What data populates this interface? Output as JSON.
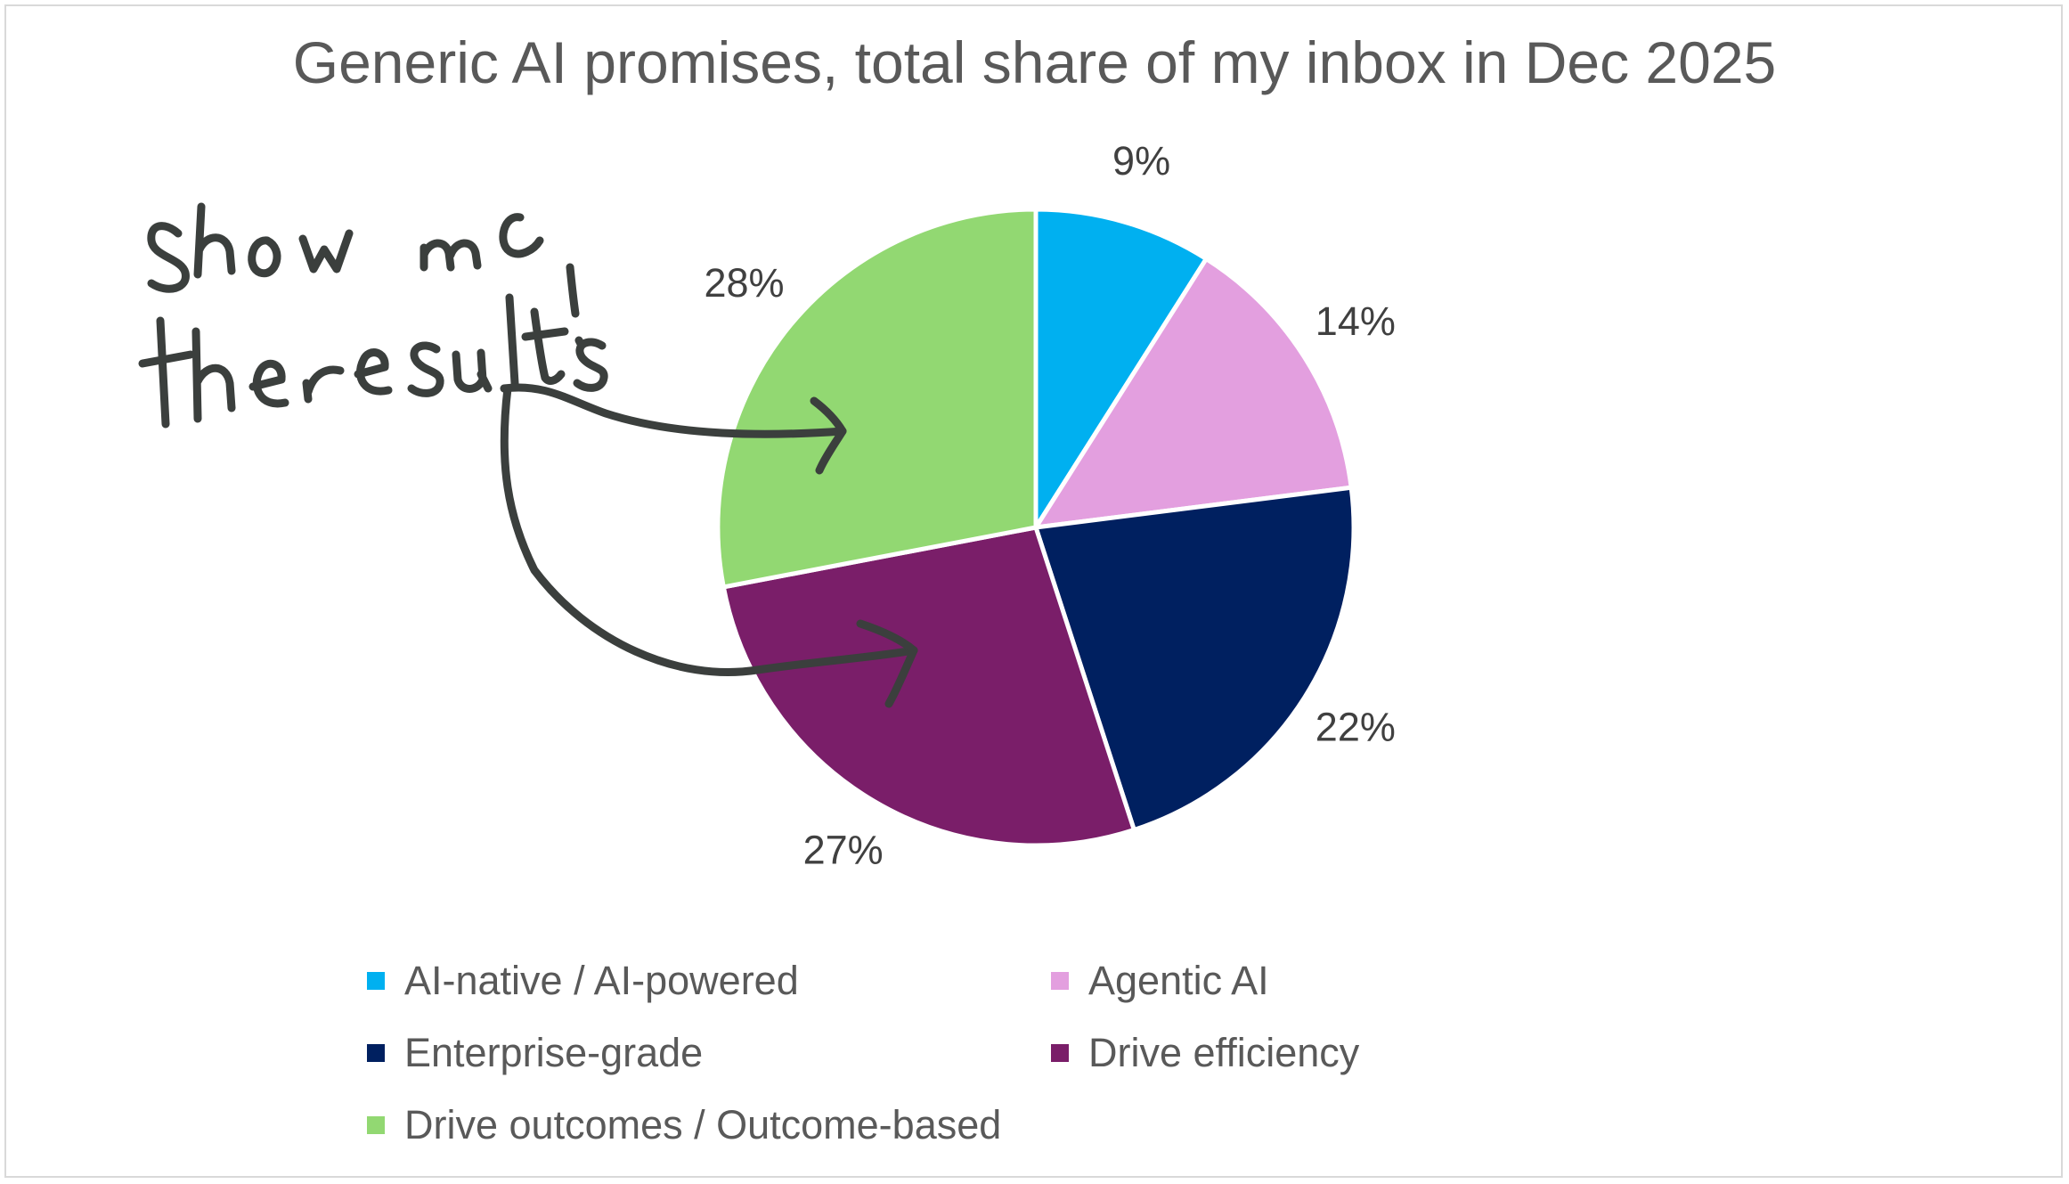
{
  "chart_data": {
    "type": "pie",
    "title": "Generic AI promises, total share of my inbox in Dec 2025",
    "categories": [
      "AI-native / AI-powered",
      "Agentic AI",
      "Enterprise-grade",
      "Drive efficiency",
      "Drive outcomes / Outcome-based"
    ],
    "values": [
      9,
      14,
      22,
      27,
      28
    ],
    "data_labels": [
      "9%",
      "14%",
      "22%",
      "27%",
      "28%"
    ],
    "colors": [
      "#00b0f0",
      "#e39fdf",
      "#002060",
      "#7a1e69",
      "#92d872"
    ],
    "legend_position": "bottom",
    "start_angle": "12 o'clock, clockwise",
    "annotation": {
      "text": "Show me the results!",
      "style": "handwritten",
      "color": "#3b3f3d"
    }
  }
}
